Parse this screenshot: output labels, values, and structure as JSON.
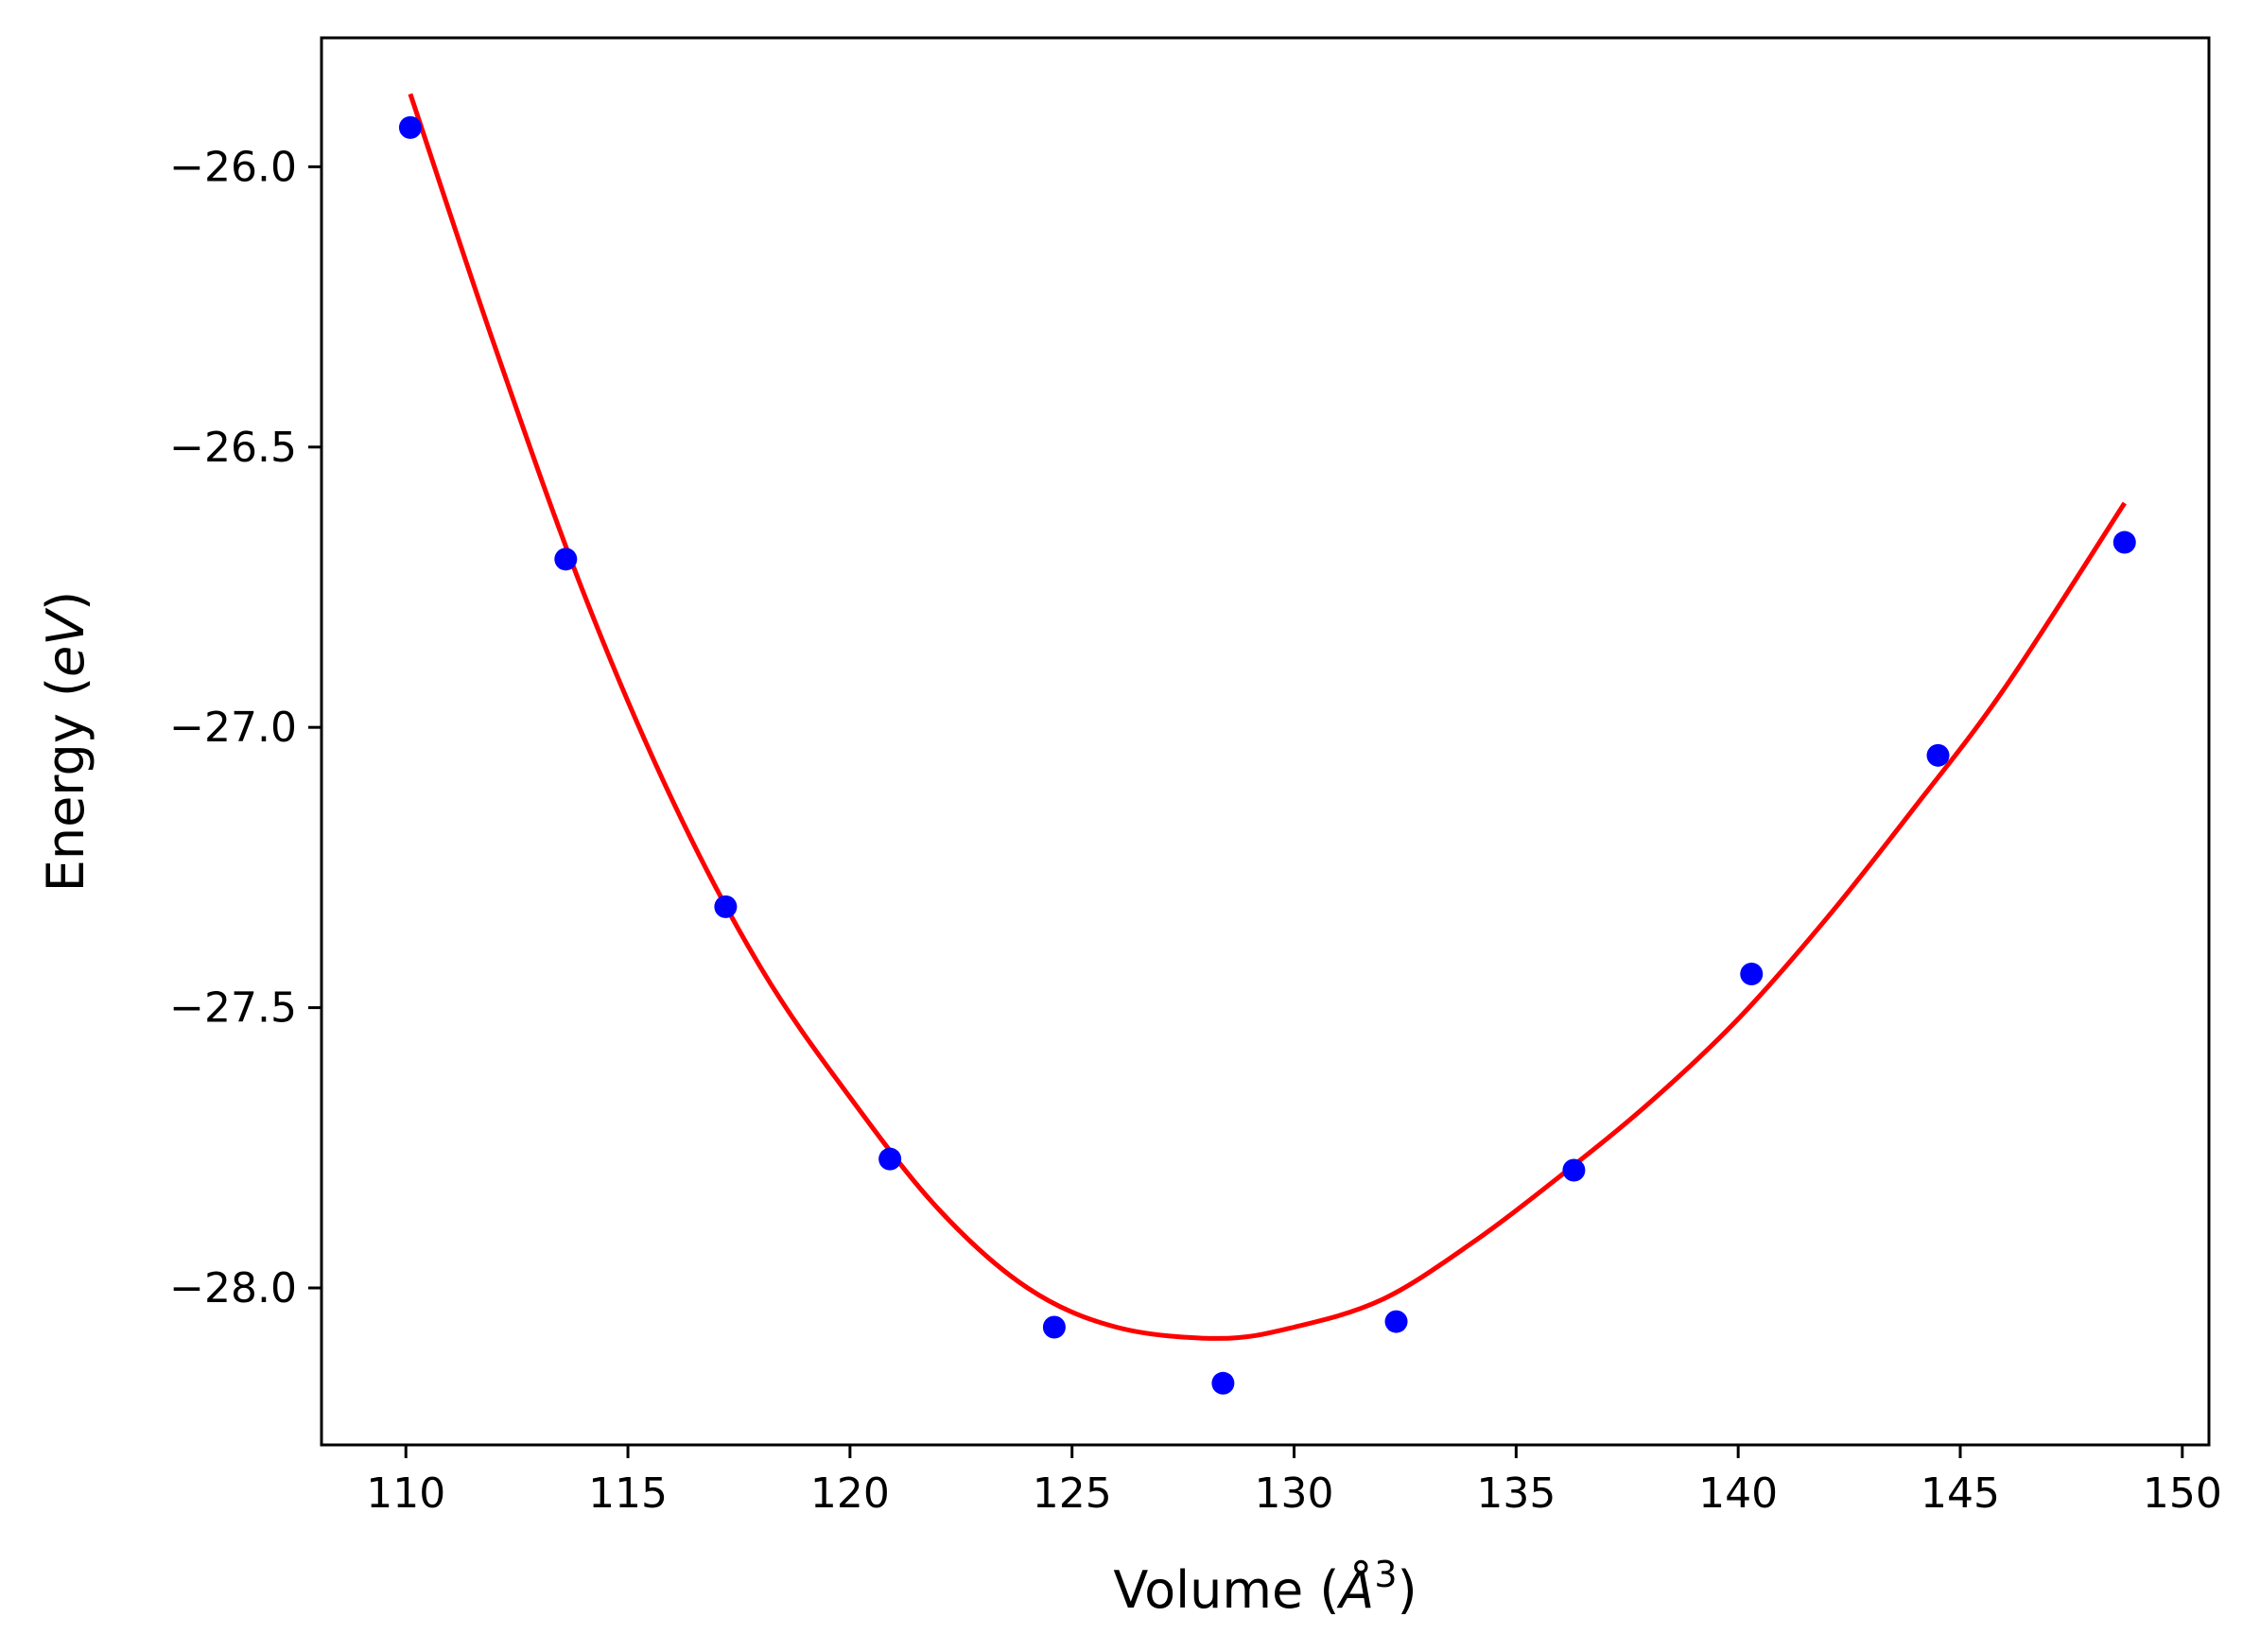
{
  "chart_data": {
    "type": "scatter",
    "xlabel": {
      "prefix": "Volume (",
      "symbol": "Å",
      "exponent": "3",
      "suffix": ")"
    },
    "ylabel": {
      "prefix": "Energy (",
      "unit": "eV",
      "suffix": ")"
    },
    "xlim": [
      108.1,
      150.6
    ],
    "ylim": [
      -28.28,
      -25.77
    ],
    "x_ticks": [
      110,
      115,
      120,
      125,
      130,
      135,
      140,
      145,
      150
    ],
    "x_tick_labels": [
      "110",
      "115",
      "120",
      "125",
      "130",
      "135",
      "140",
      "145",
      "150"
    ],
    "y_ticks": [
      -26.0,
      -26.5,
      -27.0,
      -27.5,
      -28.0
    ],
    "y_tick_labels": [
      "−26.0",
      "−26.5",
      "−27.0",
      "−27.5",
      "−28.0"
    ],
    "grid": false,
    "series": [
      {
        "kind": "points",
        "color": "#0000ff",
        "x": [
          110.1,
          113.6,
          117.2,
          120.9,
          124.6,
          128.4,
          132.3,
          136.3,
          140.3,
          144.5,
          148.7
        ],
        "y": [
          -25.93,
          -26.7,
          -27.32,
          -27.77,
          -28.07,
          -28.17,
          -28.06,
          -27.79,
          -27.44,
          -27.05,
          -26.67
        ]
      },
      {
        "kind": "fit-curve",
        "color": "#ff0000",
        "x": [
          110.1,
          112.0,
          114.0,
          116.0,
          118.0,
          120.0,
          122.0,
          124.0,
          126.0,
          128.3,
          130.0,
          132.0,
          134.0,
          136.0,
          138.0,
          140.0,
          142.0,
          144.0,
          146.0,
          148.7
        ],
        "y": [
          -25.87,
          -26.32,
          -26.76,
          -27.13,
          -27.43,
          -27.66,
          -27.86,
          -28.0,
          -28.07,
          -28.09,
          -28.07,
          -28.02,
          -27.92,
          -27.8,
          -27.67,
          -27.52,
          -27.34,
          -27.14,
          -26.93,
          -26.6
        ]
      }
    ]
  }
}
